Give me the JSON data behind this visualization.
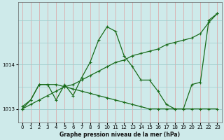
{
  "title": "Graphe pression niveau de la mer (hPa)",
  "bg_color": "#ceeaea",
  "grid_color_h": "#a0cccc",
  "grid_color_v": "#dda0a0",
  "line_color": "#1a6b1a",
  "xlim": [
    -0.5,
    23.5
  ],
  "ylim": [
    1012.7,
    1015.4
  ],
  "yticks": [
    1013,
    1014
  ],
  "xticks": [
    0,
    1,
    2,
    3,
    4,
    5,
    6,
    7,
    8,
    9,
    10,
    11,
    12,
    13,
    14,
    15,
    16,
    17,
    18,
    19,
    20,
    21,
    22,
    23
  ],
  "series_diag_x": [
    0,
    1,
    2,
    3,
    4,
    5,
    6,
    7,
    8,
    9,
    10,
    11,
    12,
    13,
    14,
    15,
    16,
    17,
    18,
    19,
    20,
    21,
    22,
    23
  ],
  "series_diag_y": [
    1013.0,
    1013.1,
    1013.2,
    1013.3,
    1013.4,
    1013.5,
    1013.55,
    1013.65,
    1013.75,
    1013.85,
    1013.95,
    1014.05,
    1014.1,
    1014.2,
    1014.25,
    1014.3,
    1014.35,
    1014.45,
    1014.5,
    1014.55,
    1014.6,
    1014.7,
    1014.95,
    1015.15
  ],
  "series_jagged_x": [
    0,
    1,
    2,
    3,
    4,
    5,
    6,
    7,
    8,
    9,
    10,
    11,
    12,
    13,
    14,
    15,
    16,
    17,
    18,
    19,
    20,
    21,
    22,
    23
  ],
  "series_jagged_y": [
    1013.0,
    1013.2,
    1013.55,
    1013.55,
    1013.2,
    1013.55,
    1013.3,
    1013.7,
    1014.05,
    1014.55,
    1014.85,
    1014.75,
    1014.2,
    1013.95,
    1013.65,
    1013.65,
    1013.4,
    1013.1,
    1013.0,
    1013.0,
    1013.55,
    1013.6,
    1015.0,
    1015.15
  ],
  "series_flat_x": [
    0,
    1,
    2,
    3,
    4,
    5,
    6,
    7,
    8,
    9,
    10,
    11,
    12,
    13,
    14,
    15,
    16,
    17,
    18,
    19,
    20,
    21,
    22,
    23
  ],
  "series_flat_y": [
    1013.05,
    1013.2,
    1013.55,
    1013.55,
    1013.55,
    1013.5,
    1013.45,
    1013.4,
    1013.35,
    1013.3,
    1013.25,
    1013.2,
    1013.15,
    1013.1,
    1013.05,
    1013.0,
    1013.0,
    1013.0,
    1013.0,
    1013.0,
    1013.0,
    1013.0,
    1013.0,
    1013.0
  ]
}
